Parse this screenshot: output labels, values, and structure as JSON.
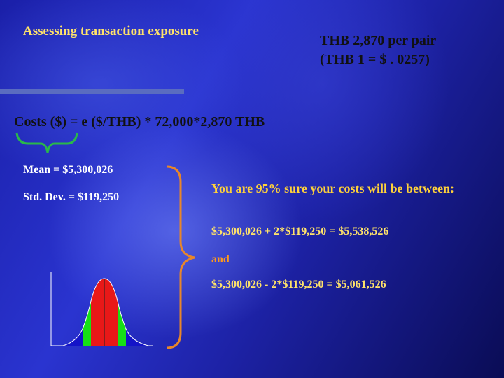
{
  "slide": {
    "title": "Assessing transaction exposure",
    "price_line1": "THB 2,870 per pair",
    "price_line2": "(THB 1 = $ . 0257)",
    "costs_formula": "Costs ($) = e ($/THB) * 72,000*2,870 THB",
    "mean": "Mean = $5,300,026",
    "std_dev": "Std. Dev. = $119,250",
    "sure_text": "You are 95% sure your costs will be between:",
    "upper_bound": "$5,300,026 + 2*$119,250 = $5,538,526",
    "and_text": "and",
    "lower_bound": "$5,300,026 - 2*$119,250 = $5,061,526"
  },
  "colors": {
    "title": "#ffe36a",
    "highlight": "#ffd23a",
    "and": "#ff9a1a",
    "brace": "#2ab84a",
    "bracket": "#e8862a",
    "dist_center": "#e81818",
    "dist_one_sd": "#16e016",
    "dist_two_sd": "#1414c8"
  }
}
